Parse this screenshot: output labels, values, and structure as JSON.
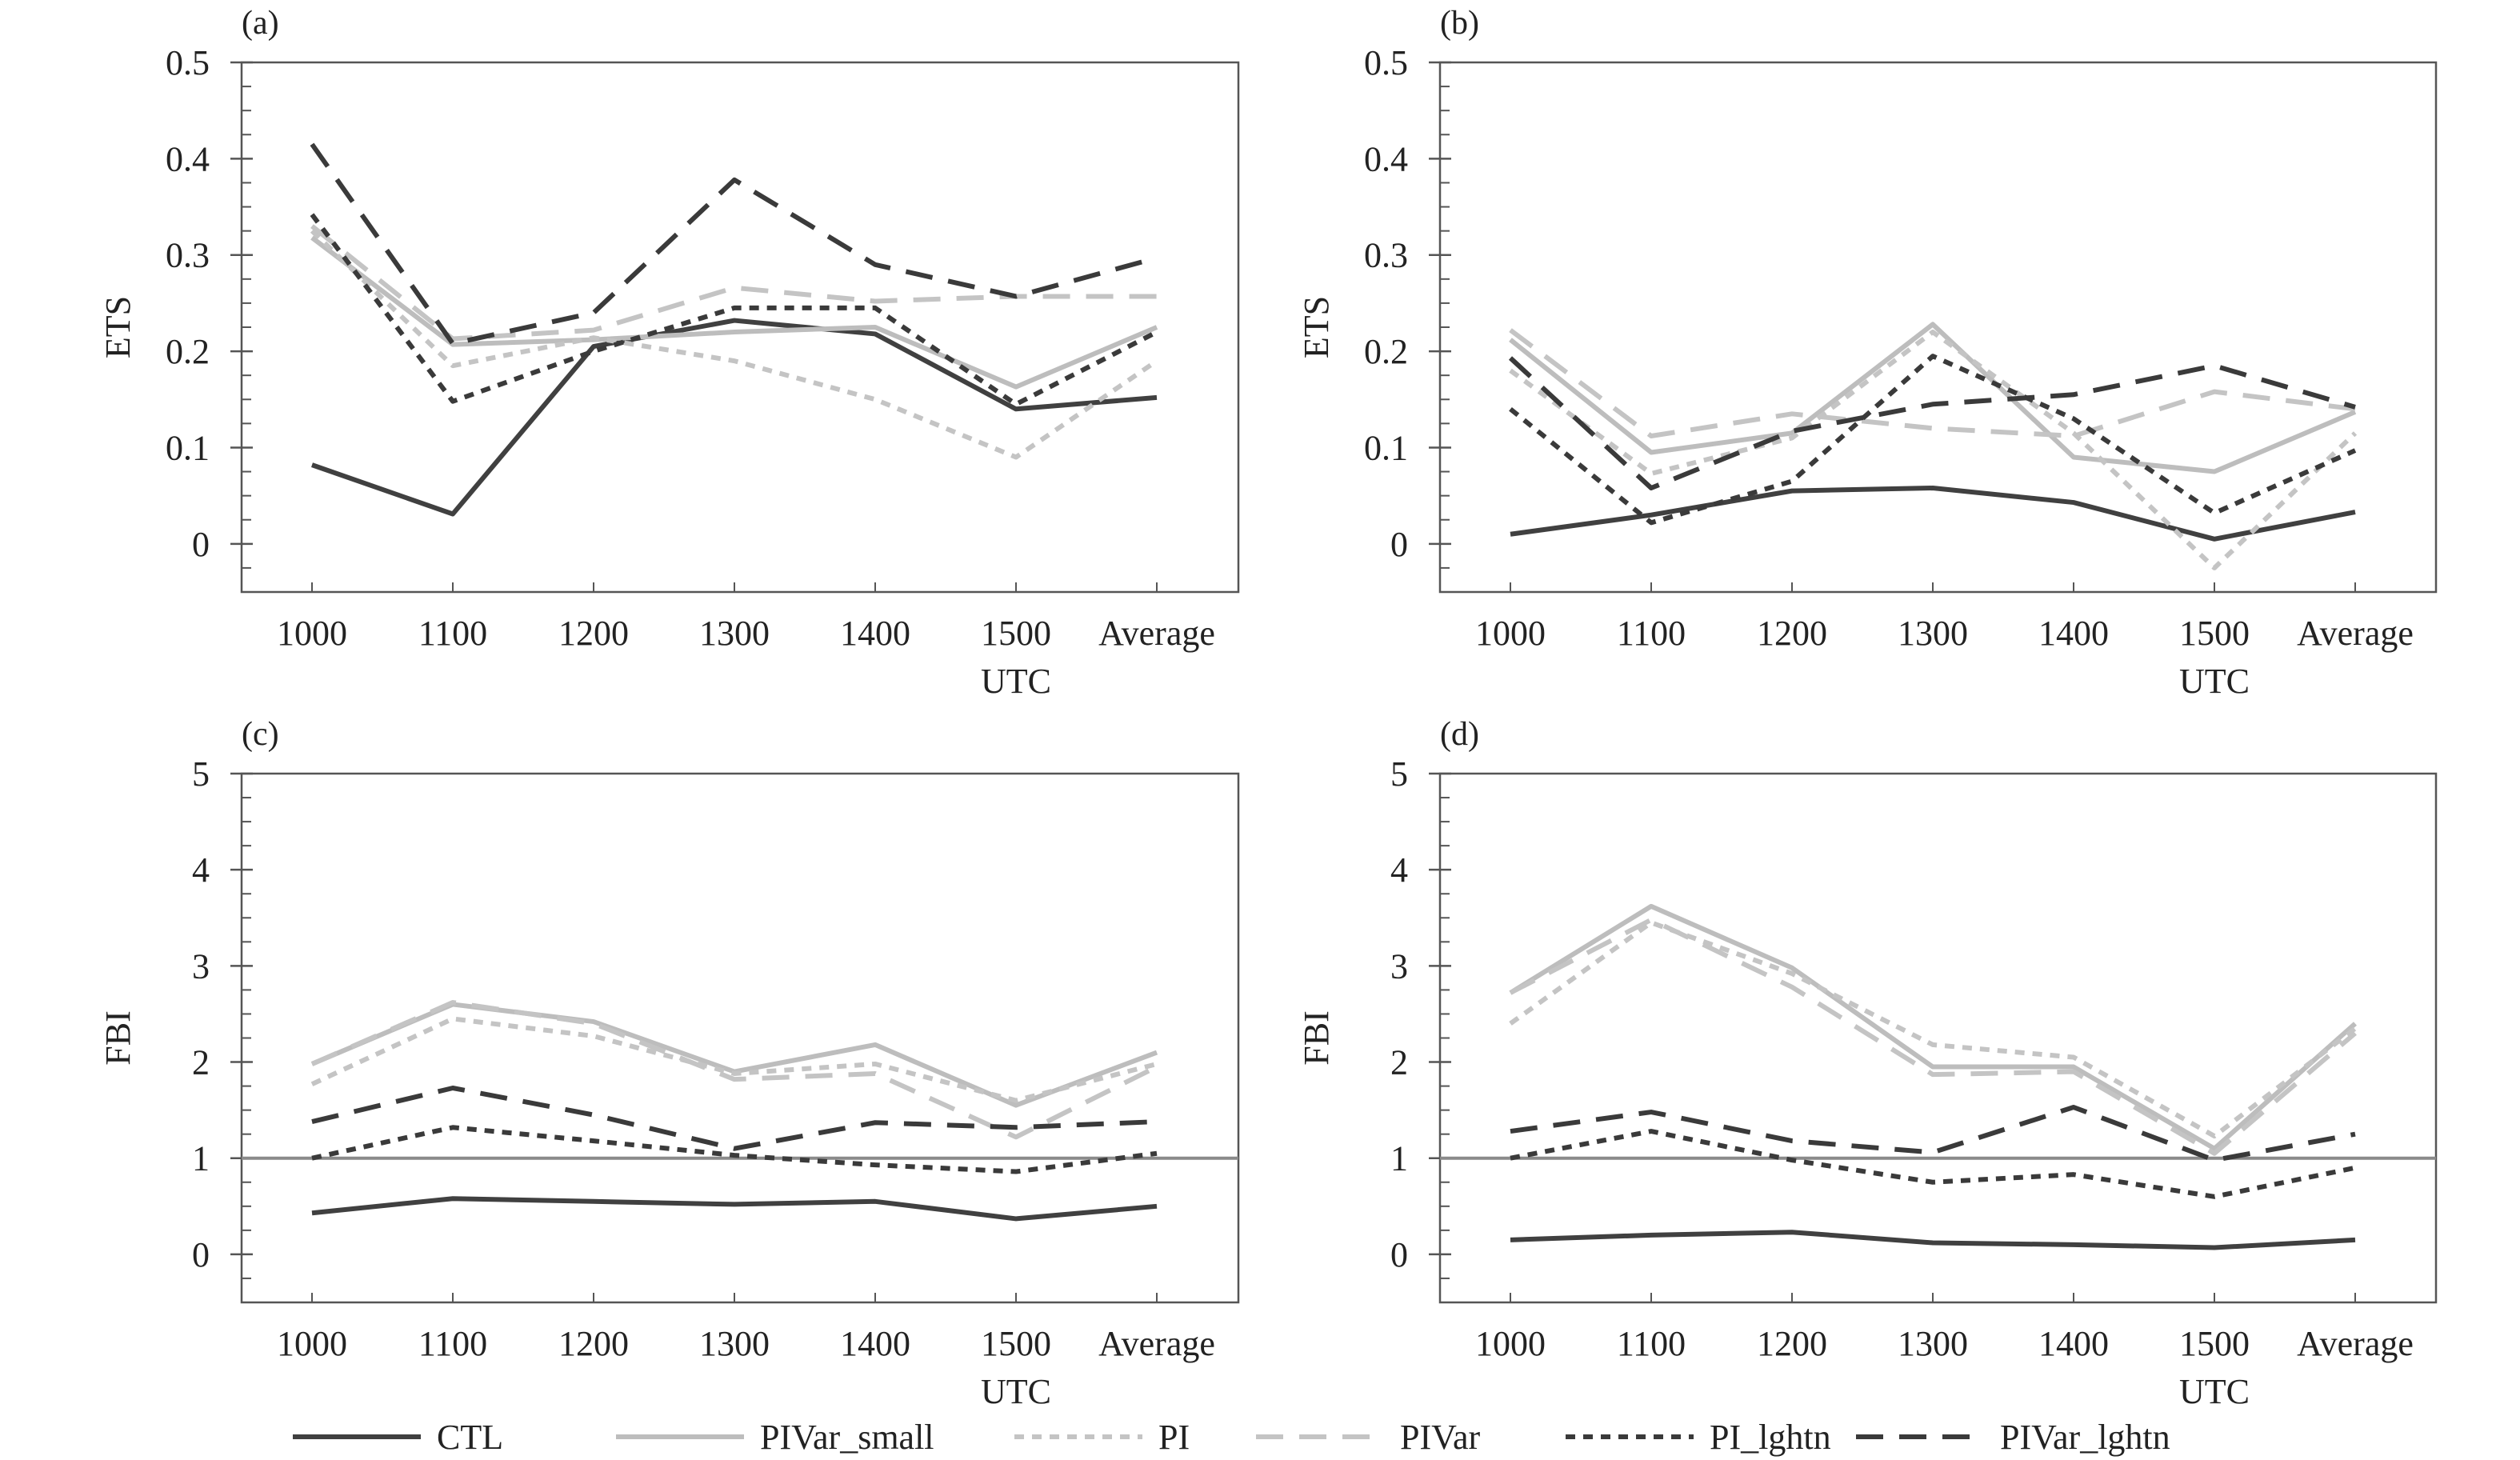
{
  "styles": {
    "CTL": {
      "color": "#404040",
      "dash": "",
      "width": 6
    },
    "PIVar_small": {
      "color": "#bdbdbd",
      "dash": "",
      "width": 6
    },
    "PI": {
      "color": "#c4c4c4",
      "dash": "12 10",
      "width": 6
    },
    "PIVar": {
      "color": "#c4c4c4",
      "dash": "34 20",
      "width": 6
    },
    "PI_lghtn": {
      "color": "#3a3a3a",
      "dash": "12 10",
      "width": 6
    },
    "PIVar_lghtn": {
      "color": "#3a3a3a",
      "dash": "34 20",
      "width": 6
    }
  },
  "legend": {
    "items": [
      {
        "key": "CTL",
        "label": "CTL"
      },
      {
        "key": "PIVar_small",
        "label": "PIVar_small"
      },
      {
        "key": "PI",
        "label": "PI"
      },
      {
        "key": "PIVar",
        "label": "PIVar"
      },
      {
        "key": "PI_lghtn",
        "label": "PI_lghtn"
      },
      {
        "key": "PIVar_lghtn",
        "label": "PIVar_lghtn"
      }
    ]
  },
  "chart_data": [
    {
      "id": "a",
      "type": "line",
      "panel_label": "(a)",
      "xlabel": "UTC",
      "ylabel": "ETS",
      "categories": [
        "1000",
        "1100",
        "1200",
        "1300",
        "1400",
        "1500",
        "Average"
      ],
      "ylim": [
        -0.05,
        0.5
      ],
      "yticks": [
        0,
        0.1,
        0.2,
        0.3,
        0.4,
        0.5
      ],
      "ytick_labels": [
        "0",
        "0.1",
        "0.2",
        "0.3",
        "0.4",
        "0.5"
      ],
      "minor_step": 0.025,
      "series": [
        {
          "name": "CTL",
          "values": [
            0.082,
            0.031,
            0.205,
            0.232,
            0.218,
            0.14,
            0.152
          ]
        },
        {
          "name": "PIVar_small",
          "values": [
            0.318,
            0.207,
            0.212,
            0.22,
            0.225,
            0.163,
            0.225
          ]
        },
        {
          "name": "PI",
          "values": [
            0.325,
            0.185,
            0.214,
            0.19,
            0.15,
            0.09,
            0.19
          ]
        },
        {
          "name": "PIVar",
          "values": [
            0.33,
            0.213,
            0.222,
            0.266,
            0.252,
            0.257,
            0.257
          ]
        },
        {
          "name": "PI_lghtn",
          "values": [
            0.342,
            0.148,
            0.2,
            0.245,
            0.245,
            0.145,
            0.22
          ]
        },
        {
          "name": "PIVar_lghtn",
          "values": [
            0.415,
            0.208,
            0.24,
            0.378,
            0.29,
            0.257,
            0.297
          ]
        }
      ]
    },
    {
      "id": "b",
      "type": "line",
      "panel_label": "(b)",
      "xlabel": "UTC",
      "ylabel": "ETS",
      "categories": [
        "1000",
        "1100",
        "1200",
        "1300",
        "1400",
        "1500",
        "Average"
      ],
      "ylim": [
        -0.05,
        0.5
      ],
      "yticks": [
        0,
        0.1,
        0.2,
        0.3,
        0.4,
        0.5
      ],
      "ytick_labels": [
        "0",
        "0.1",
        "0.2",
        "0.3",
        "0.4",
        "0.5"
      ],
      "minor_step": 0.025,
      "series": [
        {
          "name": "CTL",
          "values": [
            0.01,
            0.03,
            0.055,
            0.058,
            0.043,
            0.005,
            0.033
          ]
        },
        {
          "name": "PIVar_small",
          "values": [
            0.212,
            0.095,
            0.115,
            0.228,
            0.09,
            0.075,
            0.137
          ]
        },
        {
          "name": "PI",
          "values": [
            0.18,
            0.073,
            0.11,
            0.22,
            0.115,
            -0.025,
            0.115
          ]
        },
        {
          "name": "PIVar",
          "values": [
            0.222,
            0.112,
            0.135,
            0.12,
            0.112,
            0.158,
            0.14
          ]
        },
        {
          "name": "PI_lghtn",
          "values": [
            0.14,
            0.022,
            0.065,
            0.195,
            0.13,
            0.032,
            0.097
          ]
        },
        {
          "name": "PIVar_lghtn",
          "values": [
            0.193,
            0.058,
            0.117,
            0.145,
            0.155,
            0.185,
            0.142
          ]
        }
      ]
    },
    {
      "id": "c",
      "type": "line",
      "panel_label": "(c)",
      "xlabel": "UTC",
      "ylabel": "FBI",
      "categories": [
        "1000",
        "1100",
        "1200",
        "1300",
        "1400",
        "1500",
        "Average"
      ],
      "ylim": [
        -0.5,
        5
      ],
      "yticks": [
        0,
        1,
        2,
        3,
        4,
        5
      ],
      "ytick_labels": [
        "0",
        "1",
        "2",
        "3",
        "4",
        "5"
      ],
      "minor_step": 0.25,
      "reference_line": 1,
      "series": [
        {
          "name": "CTL",
          "values": [
            0.43,
            0.58,
            0.55,
            0.52,
            0.55,
            0.37,
            0.5
          ]
        },
        {
          "name": "PIVar_small",
          "values": [
            1.98,
            2.6,
            2.42,
            1.9,
            2.18,
            1.55,
            2.1
          ]
        },
        {
          "name": "PI",
          "values": [
            1.77,
            2.45,
            2.27,
            1.88,
            1.98,
            1.6,
            1.98
          ]
        },
        {
          "name": "PIVar",
          "values": [
            1.98,
            2.62,
            2.4,
            1.82,
            1.88,
            1.22,
            1.95
          ]
        },
        {
          "name": "PI_lghtn",
          "values": [
            1.0,
            1.32,
            1.18,
            1.03,
            0.93,
            0.86,
            1.05
          ]
        },
        {
          "name": "PIVar_lghtn",
          "values": [
            1.38,
            1.73,
            1.45,
            1.1,
            1.37,
            1.32,
            1.38
          ]
        }
      ]
    },
    {
      "id": "d",
      "type": "line",
      "panel_label": "(d)",
      "xlabel": "UTC",
      "ylabel": "FBI",
      "categories": [
        "1000",
        "1100",
        "1200",
        "1300",
        "1400",
        "1500",
        "Average"
      ],
      "ylim": [
        -0.5,
        5
      ],
      "yticks": [
        0,
        1,
        2,
        3,
        4,
        5
      ],
      "ytick_labels": [
        "0",
        "1",
        "2",
        "3",
        "4",
        "5"
      ],
      "minor_step": 0.25,
      "reference_line": 1,
      "series": [
        {
          "name": "CTL",
          "values": [
            0.15,
            0.2,
            0.23,
            0.12,
            0.1,
            0.07,
            0.15
          ]
        },
        {
          "name": "PIVar_small",
          "values": [
            2.72,
            3.62,
            2.98,
            1.95,
            1.95,
            1.1,
            2.4
          ]
        },
        {
          "name": "PI",
          "values": [
            2.4,
            3.45,
            2.92,
            2.18,
            2.05,
            1.23,
            2.35
          ]
        },
        {
          "name": "PIVar",
          "values": [
            2.72,
            3.48,
            2.78,
            1.87,
            1.9,
            1.05,
            2.3
          ]
        },
        {
          "name": "PI_lghtn",
          "values": [
            1.0,
            1.28,
            0.98,
            0.75,
            0.83,
            0.6,
            0.9
          ]
        },
        {
          "name": "PIVar_lghtn",
          "values": [
            1.28,
            1.48,
            1.18,
            1.06,
            1.53,
            0.98,
            1.25
          ]
        }
      ]
    }
  ]
}
